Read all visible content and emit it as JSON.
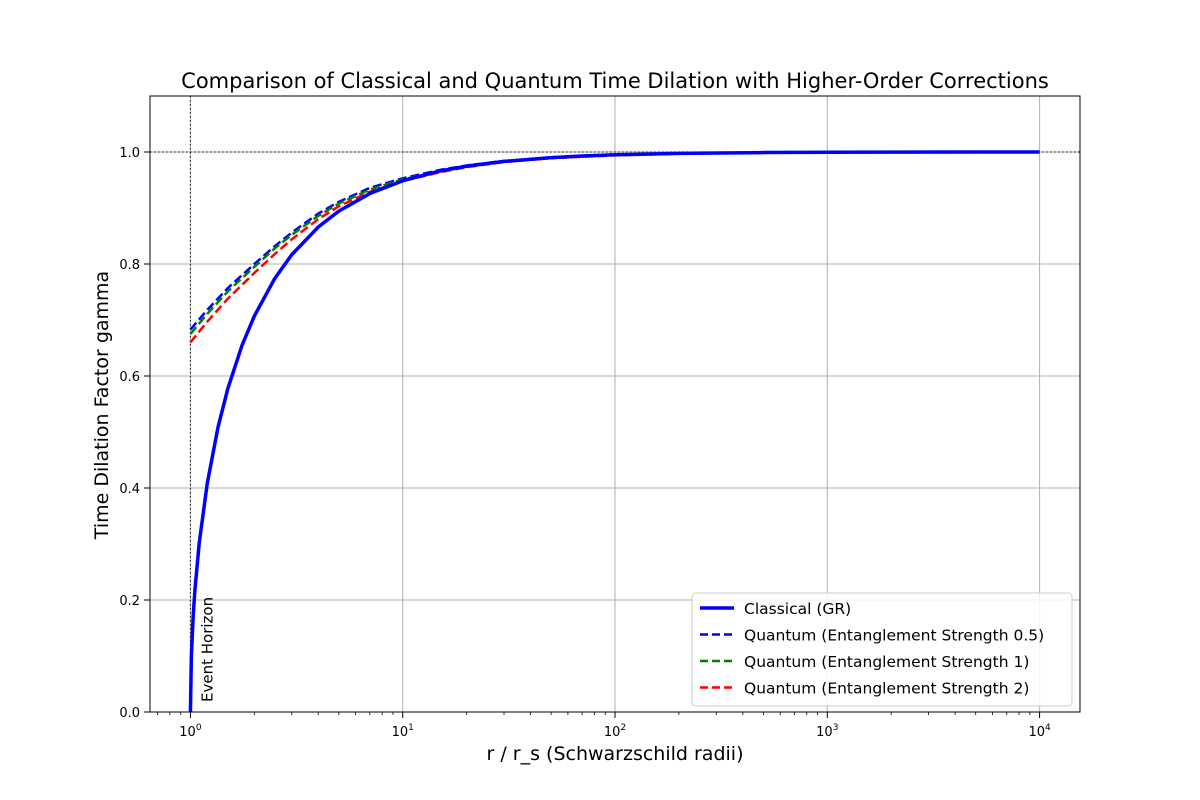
{
  "chart_data": {
    "type": "line",
    "title": "Comparison of Classical and Quantum Time Dilation with Higher-Order Corrections",
    "xlabel": "r / r_s (Schwarzschild radii)",
    "ylabel": "Time Dilation Factor gamma",
    "x_scale": "log",
    "xlim": [
      0.645,
      15500
    ],
    "ylim": [
      0,
      1.1
    ],
    "x_ticks": [
      1,
      10,
      100,
      1000,
      10000
    ],
    "x_tick_labels": [
      {
        "base": "10",
        "exp": "0"
      },
      {
        "base": "10",
        "exp": "1"
      },
      {
        "base": "10",
        "exp": "2"
      },
      {
        "base": "10",
        "exp": "3"
      },
      {
        "base": "10",
        "exp": "4"
      }
    ],
    "y_ticks": [
      0.0,
      0.2,
      0.4,
      0.6,
      0.8,
      1.0
    ],
    "y_tick_labels": [
      "0.0",
      "0.2",
      "0.4",
      "0.6",
      "0.8",
      "1.0"
    ],
    "grid": true,
    "legend_position": "bottom-right",
    "series": [
      {
        "name": "Classical (GR)",
        "color": "#0000ff",
        "style": "solid",
        "x": [
          1.0,
          1.01,
          1.03,
          1.05,
          1.1,
          1.2,
          1.35,
          1.5,
          1.75,
          2,
          2.5,
          3,
          4,
          5,
          7,
          10,
          15,
          20,
          30,
          50,
          70,
          100,
          200,
          500,
          1000,
          2000,
          5000,
          10000
        ],
        "y": [
          0.0,
          0.0995,
          0.1706,
          0.2182,
          0.3015,
          0.4082,
          0.5092,
          0.5774,
          0.6547,
          0.7071,
          0.7746,
          0.8165,
          0.866,
          0.8944,
          0.9258,
          0.9487,
          0.9661,
          0.9747,
          0.9832,
          0.99,
          0.9928,
          0.995,
          0.9975,
          0.999,
          0.9995,
          0.9998,
          0.9999,
          0.99995
        ]
      },
      {
        "name": "Quantum (Entanglement Strength 0.5)",
        "color": "#0000ff",
        "style": "dashed",
        "x": [
          1,
          1.2,
          1.5,
          2,
          2.5,
          3,
          4,
          5,
          7,
          10,
          15,
          20,
          30,
          50,
          100,
          200,
          500,
          1000,
          10000
        ],
        "y": [
          0.683,
          0.718,
          0.757,
          0.8,
          0.832,
          0.856,
          0.89,
          0.911,
          0.936,
          0.953,
          0.968,
          0.976,
          0.984,
          0.99,
          0.995,
          0.9975,
          0.999,
          0.9995,
          0.99995
        ]
      },
      {
        "name": "Quantum (Entanglement Strength 1)",
        "color": "#008000",
        "style": "dashed",
        "x": [
          1,
          1.2,
          1.5,
          2,
          2.5,
          3,
          4,
          5,
          7,
          10,
          15,
          20,
          30,
          50,
          100,
          200,
          500,
          1000,
          10000
        ],
        "y": [
          0.675,
          0.711,
          0.751,
          0.795,
          0.828,
          0.852,
          0.886,
          0.908,
          0.933,
          0.951,
          0.966,
          0.974,
          0.983,
          0.989,
          0.995,
          0.9975,
          0.999,
          0.9995,
          0.99995
        ]
      },
      {
        "name": "Quantum (Entanglement Strength 2)",
        "color": "#ff0000",
        "style": "dashed",
        "x": [
          1,
          1.2,
          1.5,
          2,
          2.5,
          3,
          4,
          5,
          7,
          10,
          15,
          20,
          30,
          50,
          100,
          200,
          500,
          1000,
          10000
        ],
        "y": [
          0.66,
          0.697,
          0.738,
          0.784,
          0.818,
          0.844,
          0.88,
          0.903,
          0.929,
          0.948,
          0.964,
          0.973,
          0.982,
          0.989,
          0.994,
          0.997,
          0.9988,
          0.9994,
          0.99994
        ]
      }
    ],
    "reference_lines": [
      {
        "orientation": "vertical",
        "value": 1,
        "style": "dotted",
        "color": "#000000",
        "label": "Event Horizon"
      },
      {
        "orientation": "horizontal",
        "value": 1.0,
        "style": "dotted",
        "color": "#000000"
      }
    ]
  }
}
